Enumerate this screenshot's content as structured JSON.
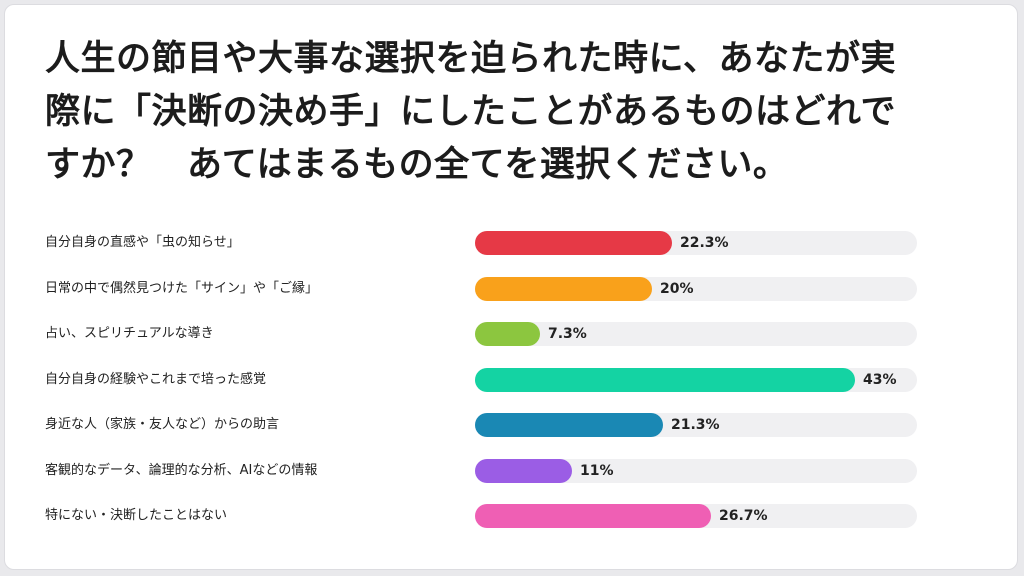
{
  "title_lines": [
    "人生の節目や大事な選択を迫られた時に、あなたが実",
    "際に「決断の決め手」にしたことがあるものはどれで",
    "すか？　あてはまるもの全てを選択ください。"
  ],
  "chart_data": {
    "type": "bar",
    "orientation": "horizontal",
    "title": "人生の節目や大事な選択を迫られた時に、あなたが実際に「決断の決め手」にしたことがあるものはどれですか？　あてはまるもの全てを選択ください。",
    "xlabel": "",
    "ylabel": "",
    "xlim": [
      0,
      50
    ],
    "grid": false,
    "legend": "none",
    "categories": [
      "自分自身の直感や「虫の知らせ」",
      "日常の中で偶然見つけた「サイン」や「ご縁」",
      "占い、スピリチュアルな導き",
      "自分自身の経験やこれまで培った感覚",
      "身近な人（家族・友人など）からの助言",
      "客観的なデータ、論理的な分析、AIなどの情報",
      "特にない・決断したことはない"
    ],
    "values": [
      22.3,
      20,
      7.3,
      43,
      21.3,
      11,
      26.7
    ],
    "value_labels": [
      "22.3%",
      "20%",
      "7.3%",
      "43%",
      "21.3%",
      "11%",
      "26.7%"
    ],
    "colors": [
      "#e63946",
      "#f9a11b",
      "#8cc63f",
      "#14d3a3",
      "#1a88b4",
      "#9b5de5",
      "#ef5fb4"
    ],
    "track_color": "#f0f0f2"
  }
}
